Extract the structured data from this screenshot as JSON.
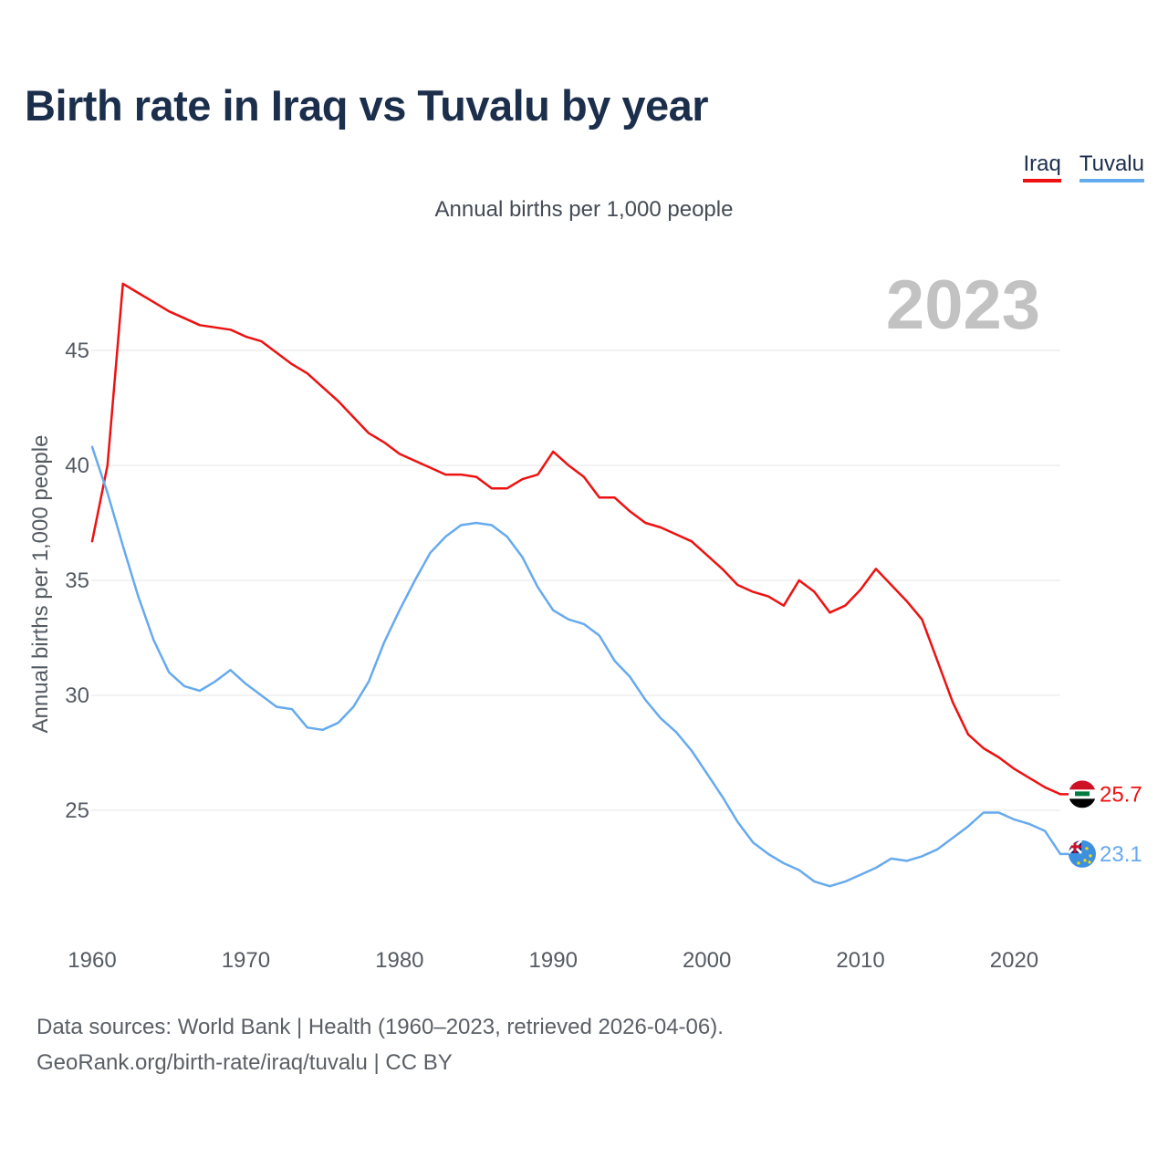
{
  "title": "Birth rate in Iraq vs Tuvalu by year",
  "legend": [
    {
      "label": "Iraq",
      "color": "#ee1111"
    },
    {
      "label": "Tuvalu",
      "color": "#66aaee"
    }
  ],
  "subtitle": "Annual births per 1,000 people",
  "year_display": "2023",
  "footer": {
    "line1": "Data sources: World Bank | Health (1960–2023, retrieved 2026-04-06).",
    "line2": "GeoRank.org/birth-rate/iraq/tuvalu | CC BY"
  },
  "chart_data": {
    "type": "line",
    "title": "Birth rate in Iraq vs Tuvalu by year",
    "xlabel": "",
    "ylabel": "Annual births per 1,000 people",
    "xlim": [
      1960,
      2023
    ],
    "ylim": [
      20,
      48
    ],
    "x_ticks": [
      1960,
      1970,
      1980,
      1990,
      2000,
      2010,
      2020
    ],
    "y_ticks": [
      25,
      30,
      35,
      40,
      45
    ],
    "grid": true,
    "x": [
      1960,
      1961,
      1962,
      1963,
      1964,
      1965,
      1966,
      1967,
      1968,
      1969,
      1970,
      1971,
      1972,
      1973,
      1974,
      1975,
      1976,
      1977,
      1978,
      1979,
      1980,
      1981,
      1982,
      1983,
      1984,
      1985,
      1986,
      1987,
      1988,
      1989,
      1990,
      1991,
      1992,
      1993,
      1994,
      1995,
      1996,
      1997,
      1998,
      1999,
      2000,
      2001,
      2002,
      2003,
      2004,
      2005,
      2006,
      2007,
      2008,
      2009,
      2010,
      2011,
      2012,
      2013,
      2014,
      2015,
      2016,
      2017,
      2018,
      2019,
      2020,
      2021,
      2022,
      2023
    ],
    "series": [
      {
        "name": "Iraq",
        "color": "#ee1111",
        "end_label": "25.7",
        "values": [
          36.7,
          40.0,
          47.9,
          47.5,
          47.1,
          46.7,
          46.4,
          46.1,
          46.0,
          45.9,
          45.6,
          45.4,
          44.9,
          44.4,
          44.0,
          43.4,
          42.8,
          42.1,
          41.4,
          41.0,
          40.5,
          40.2,
          39.9,
          39.6,
          39.6,
          39.5,
          39.0,
          39.0,
          39.4,
          39.6,
          40.6,
          40.0,
          39.5,
          38.6,
          38.6,
          38.0,
          37.5,
          37.3,
          37.0,
          36.7,
          36.1,
          35.5,
          34.8,
          34.5,
          34.3,
          33.9,
          35.0,
          34.5,
          33.6,
          33.9,
          34.6,
          35.5,
          34.8,
          34.1,
          33.3,
          31.5,
          29.7,
          28.3,
          27.7,
          27.3,
          26.8,
          26.4,
          26.0,
          25.7
        ]
      },
      {
        "name": "Tuvalu",
        "color": "#66aaee",
        "end_label": "23.1",
        "values": [
          40.8,
          38.8,
          36.5,
          34.3,
          32.4,
          31.0,
          30.4,
          30.2,
          30.6,
          31.1,
          30.5,
          30.0,
          29.5,
          29.4,
          28.6,
          28.5,
          28.8,
          29.5,
          30.6,
          32.3,
          33.7,
          35.0,
          36.2,
          36.9,
          37.4,
          37.5,
          37.4,
          36.9,
          36.0,
          34.7,
          33.7,
          33.3,
          33.1,
          32.6,
          31.5,
          30.8,
          29.8,
          29.0,
          28.4,
          27.6,
          26.6,
          25.6,
          24.5,
          23.6,
          23.1,
          22.7,
          22.4,
          21.9,
          21.7,
          21.9,
          22.2,
          22.5,
          22.9,
          22.8,
          23.0,
          23.3,
          23.8,
          24.3,
          24.9,
          24.9,
          24.6,
          24.4,
          24.1,
          23.1
        ]
      }
    ]
  }
}
